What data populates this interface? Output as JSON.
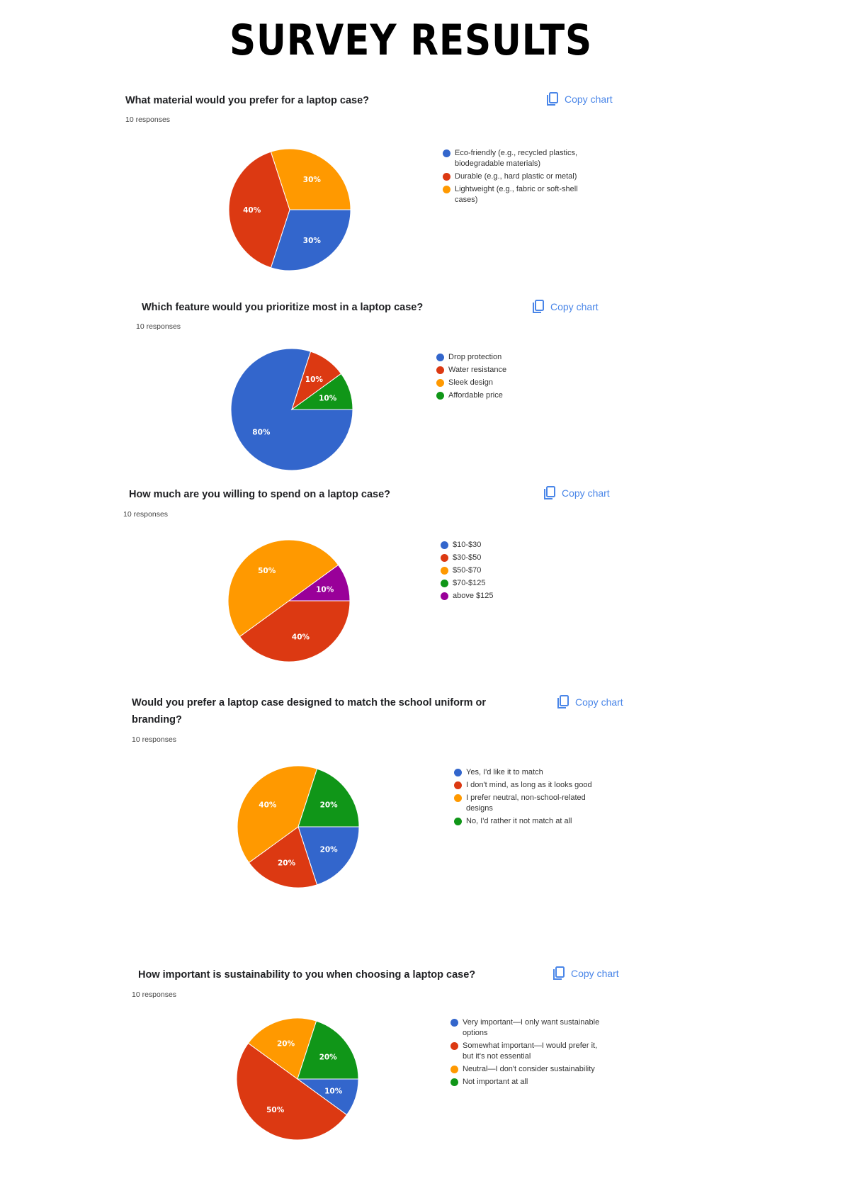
{
  "page": {
    "title": "SURVEY RESULTS"
  },
  "copy_label": "Copy chart",
  "colors": {
    "blue": "#3366cc",
    "red": "#dc3912",
    "orange": "#ff9900",
    "green": "#109618",
    "purple": "#990099"
  },
  "questions": [
    {
      "title": "What material would you prefer for a laptop case?",
      "responses": "10 responses",
      "legend": [
        {
          "label": "Eco-friendly (e.g., recycled plastics, biodegradable materials)",
          "color": "#3366cc"
        },
        {
          "label": "Durable (e.g., hard plastic or metal)",
          "color": "#dc3912"
        },
        {
          "label": "Lightweight (e.g., fabric or soft-shell cases)",
          "color": "#ff9900"
        }
      ]
    },
    {
      "title": "Which feature would you prioritize most in a laptop case?",
      "responses": "10 responses",
      "legend": [
        {
          "label": "Drop protection",
          "color": "#3366cc"
        },
        {
          "label": "Water resistance",
          "color": "#dc3912"
        },
        {
          "label": "Sleek design",
          "color": "#ff9900"
        },
        {
          "label": "Affordable price",
          "color": "#109618"
        }
      ]
    },
    {
      "title": "How much are you willing to spend on a laptop case?",
      "responses": "10 responses",
      "legend": [
        {
          "label": "$10-$30",
          "color": "#3366cc"
        },
        {
          "label": "$30-$50",
          "color": "#dc3912"
        },
        {
          "label": "$50-$70",
          "color": "#ff9900"
        },
        {
          "label": "$70-$125",
          "color": "#109618"
        },
        {
          "label": "above $125",
          "color": "#990099"
        }
      ]
    },
    {
      "title": "Would you prefer a laptop case designed to match the school uniform or branding?",
      "responses": "10 responses",
      "legend": [
        {
          "label": "Yes, I'd like it to match",
          "color": "#3366cc"
        },
        {
          "label": "I don't mind, as long as it looks good",
          "color": "#dc3912"
        },
        {
          "label": "I prefer neutral, non-school-related designs",
          "color": "#ff9900"
        },
        {
          "label": "No, I'd rather it not match at all",
          "color": "#109618"
        }
      ]
    },
    {
      "title": "How important is sustainability to you when choosing a laptop case?",
      "responses": "10 responses",
      "legend": [
        {
          "label": "Very important—I only want sustainable options",
          "color": "#3366cc"
        },
        {
          "label": "Somewhat important—I would prefer it, but it's not essential",
          "color": "#dc3912"
        },
        {
          "label": "Neutral—I don't consider sustainability",
          "color": "#ff9900"
        },
        {
          "label": "Not important at all",
          "color": "#109618"
        }
      ]
    }
  ],
  "chart_data": [
    {
      "type": "pie",
      "title": "What material would you prefer for a laptop case?",
      "subtitle": "10 responses",
      "categories": [
        "Eco-friendly (e.g., recycled plastics, biodegradable materials)",
        "Durable (e.g., hard plastic or metal)",
        "Lightweight (e.g., fabric or soft-shell cases)"
      ],
      "values": [
        30,
        40,
        30
      ],
      "colors": [
        "#3366cc",
        "#dc3912",
        "#ff9900"
      ],
      "legend_position": "right"
    },
    {
      "type": "pie",
      "title": "Which feature would you prioritize most in a laptop case?",
      "subtitle": "10 responses",
      "categories": [
        "Drop protection",
        "Water resistance",
        "Sleek design",
        "Affordable price"
      ],
      "values": [
        80,
        10,
        0,
        10
      ],
      "colors": [
        "#3366cc",
        "#dc3912",
        "#ff9900",
        "#109618"
      ],
      "legend_position": "right"
    },
    {
      "type": "pie",
      "title": "How much are you willing to spend on a laptop case?",
      "subtitle": "10 responses",
      "categories": [
        "$10-$30",
        "$30-$50",
        "$50-$70",
        "$70-$125",
        "above $125"
      ],
      "values": [
        0,
        40,
        50,
        0,
        10
      ],
      "colors": [
        "#3366cc",
        "#dc3912",
        "#ff9900",
        "#109618",
        "#990099"
      ],
      "legend_position": "right"
    },
    {
      "type": "pie",
      "title": "Would you prefer a laptop case designed to match the school uniform or branding?",
      "subtitle": "10 responses",
      "categories": [
        "Yes, I'd like it to match",
        "I don't mind, as long as it looks good",
        "I prefer neutral, non-school-related designs",
        "No, I'd rather it not match at all"
      ],
      "values": [
        20,
        20,
        40,
        20
      ],
      "colors": [
        "#3366cc",
        "#dc3912",
        "#ff9900",
        "#109618"
      ],
      "legend_position": "right"
    },
    {
      "type": "pie",
      "title": "How important is sustainability to you when choosing a laptop case?",
      "subtitle": "10 responses",
      "categories": [
        "Very important—I only want sustainable options",
        "Somewhat important—I would prefer it, but it's not essential",
        "Neutral—I don't consider sustainability",
        "Not important at all"
      ],
      "values": [
        10,
        50,
        20,
        20
      ],
      "colors": [
        "#3366cc",
        "#dc3912",
        "#ff9900",
        "#109618"
      ],
      "legend_position": "right"
    }
  ]
}
